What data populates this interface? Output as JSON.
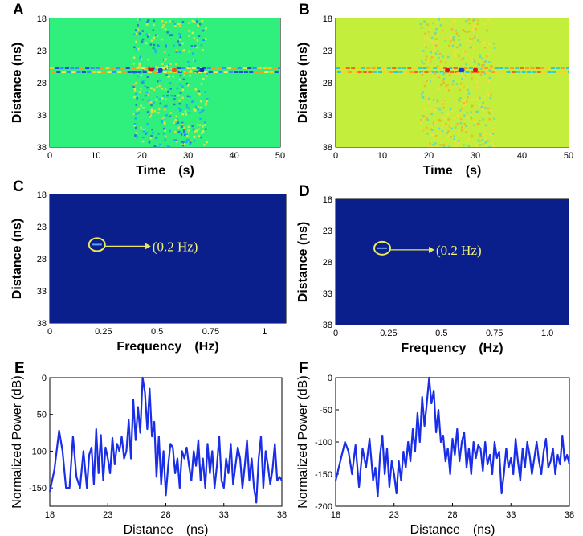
{
  "chart_data": [
    {
      "panel": "A",
      "type": "heatmap",
      "xlabel": "Time",
      "xunit": "s",
      "ylabel": "Distance",
      "yunit": "ns",
      "xlim": [
        0,
        50
      ],
      "ylim": [
        18,
        38
      ],
      "xticks": [
        "0",
        "10",
        "20",
        "30",
        "40",
        "50"
      ],
      "yticks": [
        "18",
        "23",
        "28",
        "33",
        "38"
      ],
      "background": "#2ff07c",
      "band_center": 26.0
    },
    {
      "panel": "B",
      "type": "heatmap",
      "xlabel": "Time",
      "xunit": "s",
      "ylabel": "Distance",
      "yunit": "ns",
      "xlim": [
        0,
        50
      ],
      "ylim": [
        18,
        38
      ],
      "xticks": [
        "0",
        "10",
        "20",
        "30",
        "40",
        "50"
      ],
      "yticks": [
        "18",
        "23",
        "28",
        "33",
        "38"
      ],
      "background": "#c4ee3c",
      "band_center": 26.0
    },
    {
      "panel": "C",
      "type": "heatmap",
      "xlabel": "Frequency",
      "xunit": "Hz",
      "ylabel": "Distance",
      "yunit": "ns",
      "xlim": [
        0,
        1.1
      ],
      "ylim": [
        18,
        38
      ],
      "xticks": [
        "0",
        "0.25",
        "0.5",
        "0.75",
        "1"
      ],
      "yticks": [
        "18",
        "23",
        "28",
        "33",
        "38"
      ],
      "background": "#0a1f8c",
      "annotation": "(0.2 Hz)",
      "peak": {
        "x": 0.22,
        "y": 25.8
      }
    },
    {
      "panel": "D",
      "type": "heatmap",
      "xlabel": "Frequency",
      "xunit": "Hz",
      "ylabel": "Distance",
      "yunit": "ns",
      "xlim": [
        0,
        1.1
      ],
      "ylim": [
        18,
        38
      ],
      "xticks": [
        "0",
        "0.25",
        "0.5",
        "0.75",
        "1.0"
      ],
      "yticks": [
        "18",
        "23",
        "28",
        "33",
        "38"
      ],
      "background": "#0a1f8c",
      "annotation": "(0.2 Hz)",
      "peak": {
        "x": 0.22,
        "y": 25.8
      }
    },
    {
      "panel": "E",
      "type": "line",
      "xlabel": "Distance",
      "xunit": "ns",
      "ylabel": "Normalized Power",
      "yunit": "dB",
      "xlim": [
        18,
        38
      ],
      "ylim": [
        -175,
        0
      ],
      "xticks": [
        "18",
        "23",
        "28",
        "33",
        "38"
      ],
      "yticks": [
        "0",
        "-50",
        "-100",
        "-150"
      ],
      "series": [
        {
          "name": "E",
          "color": "#1a2ee8",
          "x": [
            18.0,
            18.4,
            18.8,
            19.1,
            19.4,
            19.7,
            20.0,
            20.3,
            20.6,
            20.9,
            21.2,
            21.4,
            21.6,
            21.8,
            22.0,
            22.2,
            22.4,
            22.6,
            22.8,
            23.0,
            23.2,
            23.4,
            23.6,
            23.8,
            24.0,
            24.2,
            24.4,
            24.6,
            24.8,
            25.0,
            25.2,
            25.4,
            25.6,
            25.8,
            26.0,
            26.2,
            26.4,
            26.6,
            26.8,
            27.0,
            27.2,
            27.4,
            27.6,
            27.8,
            28.0,
            28.2,
            28.4,
            28.6,
            28.8,
            29.0,
            29.2,
            29.4,
            29.6,
            29.8,
            30.0,
            30.2,
            30.4,
            30.6,
            30.8,
            31.0,
            31.2,
            31.4,
            31.6,
            31.8,
            32.0,
            32.2,
            32.4,
            32.6,
            32.8,
            33.0,
            33.2,
            33.4,
            33.6,
            33.8,
            34.0,
            34.2,
            34.4,
            34.6,
            34.8,
            35.0,
            35.2,
            35.4,
            35.6,
            35.8,
            36.0,
            36.2,
            36.4,
            36.6,
            36.8,
            37.0,
            37.2,
            37.4,
            37.6,
            37.8,
            38.0
          ],
          "y": [
            -155,
            -125,
            -72,
            -100,
            -150,
            -150,
            -80,
            -135,
            -150,
            -100,
            -150,
            -105,
            -95,
            -145,
            -70,
            -130,
            -78,
            -140,
            -95,
            -110,
            -130,
            -82,
            -118,
            -90,
            -100,
            -80,
            -110,
            -100,
            -58,
            -110,
            -30,
            -85,
            -40,
            -75,
            0,
            -20,
            -70,
            -15,
            -80,
            -60,
            -135,
            -80,
            -145,
            -100,
            -160,
            -120,
            -90,
            -95,
            -130,
            -110,
            -150,
            -100,
            -110,
            -95,
            -120,
            -140,
            -100,
            -120,
            -85,
            -140,
            -110,
            -150,
            -90,
            -130,
            -100,
            -150,
            -120,
            -80,
            -140,
            -150,
            -110,
            -130,
            -90,
            -145,
            -120,
            -95,
            -110,
            -150,
            -120,
            -85,
            -140,
            -110,
            -150,
            -170,
            -110,
            -80,
            -150,
            -100,
            -120,
            -145,
            -125,
            -90,
            -140,
            -135,
            -140
          ]
        }
      ]
    },
    {
      "panel": "F",
      "type": "line",
      "xlabel": "Distance",
      "xunit": "ns",
      "ylabel": "Normalized Power",
      "yunit": "dB",
      "xlim": [
        18,
        38
      ],
      "ylim": [
        -200,
        0
      ],
      "xticks": [
        "18",
        "23",
        "28",
        "33",
        "38"
      ],
      "yticks": [
        "0",
        "-50",
        "-100",
        "-150",
        "-200"
      ],
      "series": [
        {
          "name": "F",
          "color": "#1a2ee8",
          "x": [
            18.0,
            18.4,
            18.8,
            19.1,
            19.4,
            19.7,
            20.0,
            20.3,
            20.6,
            20.9,
            21.2,
            21.4,
            21.6,
            21.8,
            22.0,
            22.2,
            22.4,
            22.6,
            22.8,
            23.0,
            23.2,
            23.4,
            23.6,
            23.8,
            24.0,
            24.2,
            24.4,
            24.6,
            24.8,
            25.0,
            25.2,
            25.4,
            25.6,
            25.8,
            26.0,
            26.2,
            26.4,
            26.6,
            26.8,
            27.0,
            27.2,
            27.4,
            27.6,
            27.8,
            28.0,
            28.2,
            28.4,
            28.6,
            28.8,
            29.0,
            29.2,
            29.4,
            29.6,
            29.8,
            30.0,
            30.2,
            30.4,
            30.6,
            30.8,
            31.0,
            31.2,
            31.4,
            31.6,
            31.8,
            32.0,
            32.2,
            32.4,
            32.6,
            32.8,
            33.0,
            33.2,
            33.4,
            33.6,
            33.8,
            34.0,
            34.2,
            34.4,
            34.6,
            34.8,
            35.0,
            35.2,
            35.4,
            35.6,
            35.8,
            36.0,
            36.2,
            36.4,
            36.6,
            36.8,
            37.0,
            37.2,
            37.4,
            37.6,
            37.8,
            38.0
          ],
          "y": [
            -160,
            -130,
            -100,
            -115,
            -150,
            -105,
            -170,
            -110,
            -140,
            -95,
            -160,
            -140,
            -185,
            -120,
            -90,
            -150,
            -110,
            -170,
            -130,
            -150,
            -180,
            -130,
            -160,
            -115,
            -140,
            -100,
            -130,
            -80,
            -115,
            -55,
            -100,
            -30,
            -75,
            -40,
            0,
            -40,
            -20,
            -85,
            -50,
            -100,
            -90,
            -130,
            -110,
            -150,
            -95,
            -120,
            -80,
            -130,
            -100,
            -85,
            -140,
            -110,
            -150,
            -100,
            -125,
            -105,
            -110,
            -145,
            -100,
            -135,
            -120,
            -150,
            -100,
            -125,
            -115,
            -180,
            -150,
            -110,
            -140,
            -125,
            -150,
            -95,
            -130,
            -160,
            -110,
            -140,
            -100,
            -120,
            -150,
            -125,
            -100,
            -130,
            -150,
            -115,
            -95,
            -140,
            -130,
            -110,
            -150,
            -120,
            -135,
            -90,
            -130,
            -120,
            -135
          ]
        }
      ]
    }
  ]
}
